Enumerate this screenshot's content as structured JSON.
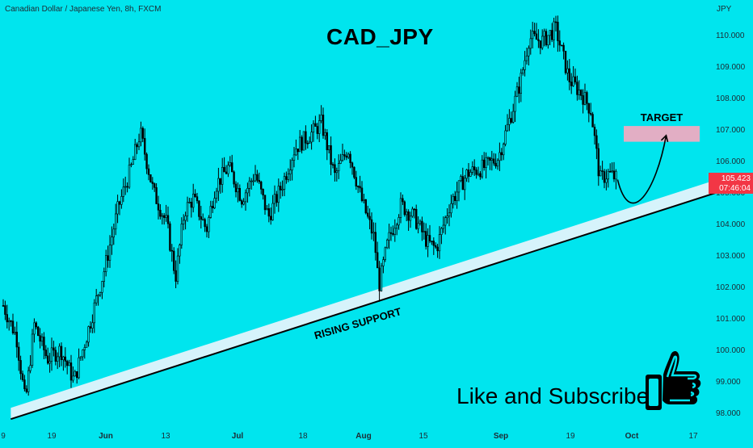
{
  "header": {
    "instrument": "Canadian Dollar / Japanese Yen, 8h, FXCM",
    "title": "CAD_JPY"
  },
  "price": {
    "unit": "JPY",
    "last_price": "105.423",
    "countdown": "07:46:04",
    "badge_color": "#f23645"
  },
  "annotations": {
    "support_label": "RISING SUPPORT",
    "target_label": "TARGET",
    "subscribe_text": "Like and Subscribe"
  },
  "colors": {
    "background": "#00e5ee",
    "candles": "#000000",
    "support_band": "#d6f3fb",
    "target_zone": "#e2aec4"
  },
  "icons": [
    "thumbs-up-icon"
  ],
  "chart_data": {
    "type": "candlestick",
    "title": "CAD_JPY",
    "y_axis": {
      "unit": "JPY",
      "range": [
        97.9,
        110.6
      ],
      "ticks": [
        "98.000",
        "99.000",
        "100.000",
        "101.000",
        "102.000",
        "103.000",
        "104.000",
        "105.000",
        "106.000",
        "107.000",
        "108.000",
        "109.000",
        "110.000"
      ]
    },
    "x_axis": {
      "ticks": [
        "9",
        "19",
        "Jun",
        "13",
        "Jul",
        "18",
        "Aug",
        "15",
        "Sep",
        "19",
        "Oct",
        "17"
      ]
    },
    "price_path": [
      {
        "x": "May 9",
        "y": 101.4
      },
      {
        "x": "May 12",
        "y": 100.4
      },
      {
        "x": "May 14",
        "y": 98.3
      },
      {
        "x": "May 16",
        "y": 100.8
      },
      {
        "x": "May 19",
        "y": 99.7
      },
      {
        "x": "May 22",
        "y": 100.0
      },
      {
        "x": "May 25",
        "y": 99.0
      },
      {
        "x": "May 28",
        "y": 100.5
      },
      {
        "x": "Jun 1",
        "y": 102.6
      },
      {
        "x": "Jun 4",
        "y": 104.5
      },
      {
        "x": "Jun 7",
        "y": 105.8
      },
      {
        "x": "Jun 9",
        "y": 106.9
      },
      {
        "x": "Jun 12",
        "y": 105.0
      },
      {
        "x": "Jun 15",
        "y": 104.0
      },
      {
        "x": "Jun 17",
        "y": 102.3
      },
      {
        "x": "Jun 19",
        "y": 104.4
      },
      {
        "x": "Jun 21",
        "y": 104.8
      },
      {
        "x": "Jun 24",
        "y": 103.8
      },
      {
        "x": "Jun 26",
        "y": 105.2
      },
      {
        "x": "Jun 29",
        "y": 105.8
      },
      {
        "x": "Jul 2",
        "y": 104.8
      },
      {
        "x": "Jul 5",
        "y": 105.6
      },
      {
        "x": "Jul 8",
        "y": 104.2
      },
      {
        "x": "Jul 11",
        "y": 105.2
      },
      {
        "x": "Jul 14",
        "y": 106.4
      },
      {
        "x": "Jul 18",
        "y": 106.9
      },
      {
        "x": "Jul 20",
        "y": 107.2
      },
      {
        "x": "Jul 23",
        "y": 105.5
      },
      {
        "x": "Jul 26",
        "y": 106.4
      },
      {
        "x": "Jul 29",
        "y": 104.8
      },
      {
        "x": "Aug 1",
        "y": 103.5
      },
      {
        "x": "Aug 2",
        "y": 102.0
      },
      {
        "x": "Aug 4",
        "y": 103.4
      },
      {
        "x": "Aug 7",
        "y": 104.6
      },
      {
        "x": "Aug 10",
        "y": 104.2
      },
      {
        "x": "Aug 13",
        "y": 103.4
      },
      {
        "x": "Aug 15",
        "y": 103.2
      },
      {
        "x": "Aug 18",
        "y": 104.6
      },
      {
        "x": "Aug 22",
        "y": 105.6
      },
      {
        "x": "Aug 26",
        "y": 105.8
      },
      {
        "x": "Aug 29",
        "y": 106.1
      },
      {
        "x": "Sep 1",
        "y": 107.5
      },
      {
        "x": "Sep 3",
        "y": 108.5
      },
      {
        "x": "Sep 5",
        "y": 109.9
      },
      {
        "x": "Sep 8",
        "y": 109.8
      },
      {
        "x": "Sep 11",
        "y": 110.2
      },
      {
        "x": "Sep 14",
        "y": 108.6
      },
      {
        "x": "Sep 17",
        "y": 108.1
      },
      {
        "x": "Sep 19",
        "y": 107.6
      },
      {
        "x": "Sep 21",
        "y": 105.4
      },
      {
        "x": "Sep 23",
        "y": 105.6
      },
      {
        "x": "Sep 25",
        "y": 105.4
      }
    ],
    "support_line": {
      "from": {
        "x": "May 14",
        "y": 98.2
      },
      "to": {
        "x": "Oct 17",
        "y": 105.1
      }
    },
    "target_zone": {
      "from": 106.6,
      "to": 107.1
    },
    "projection": [
      {
        "x": "Sep 25",
        "y": 105.4
      },
      {
        "x": "Sep 29",
        "y": 104.5
      },
      {
        "x": "Oct 3",
        "y": 105.4
      },
      {
        "x": "Oct 6",
        "y": 106.8
      }
    ],
    "grid": false
  }
}
